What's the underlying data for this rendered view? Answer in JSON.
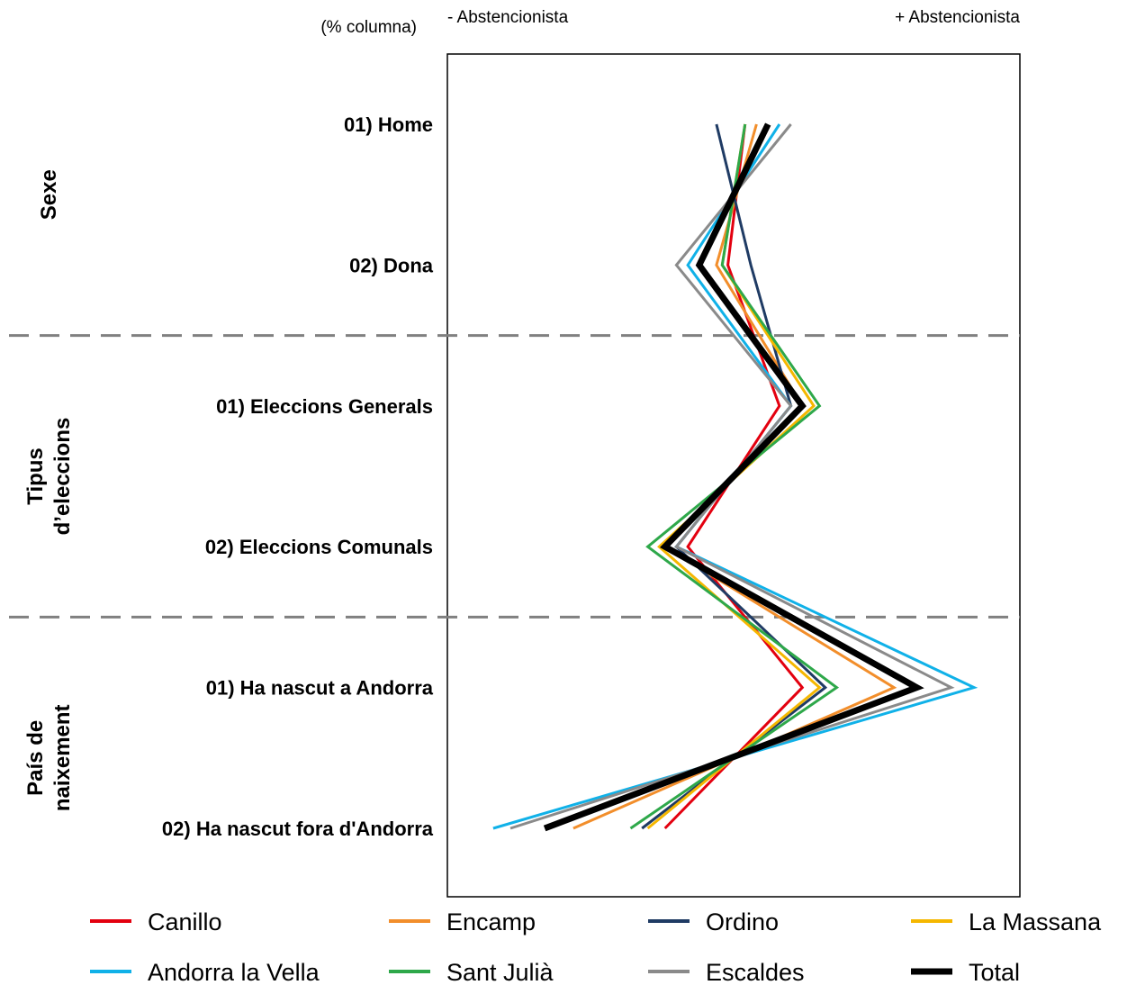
{
  "chart_data": {
    "type": "line",
    "orientation": "horizontal-profile",
    "column_note": "(% columna)",
    "x_axis_left_label": "- Abstencionista",
    "x_axis_right_label": "+ Abstencionista",
    "groups": [
      {
        "label": "Sexe",
        "lines": [
          "Sexe"
        ],
        "categories": [
          "01) Home",
          "02) Dona"
        ]
      },
      {
        "label": "Tipus d'eleccions",
        "lines": [
          "Tipus",
          "d’eleccions"
        ],
        "categories": [
          "01) Eleccions Generals",
          "02) Eleccions Comunals"
        ]
      },
      {
        "label": "País de naixement",
        "lines": [
          "País de",
          "naixement"
        ],
        "categories": [
          "01) Ha nascut a Andorra",
          "02) Ha nascut fora d'Andorra"
        ]
      }
    ],
    "categories": [
      "01) Home",
      "02) Dona",
      "01) Eleccions Generals",
      "02) Eleccions Comunals",
      "01) Ha nascut a Andorra",
      "02) Ha nascut fora d'Andorra"
    ],
    "xlim": [
      0,
      100
    ],
    "x_note": "relative position on abstention scale (left = less abstentionist, right = more abstentionist)",
    "series": [
      {
        "name": "Canillo",
        "color": "#E3000F",
        "values": [
          52,
          49,
          58,
          42,
          62,
          38
        ]
      },
      {
        "name": "Encamp",
        "color": "#F28E2B",
        "values": [
          54,
          47,
          62,
          38,
          78,
          22
        ]
      },
      {
        "name": "Ordino",
        "color": "#1F3B64",
        "values": [
          47,
          53,
          60,
          40,
          66,
          34
        ]
      },
      {
        "name": "La Massana",
        "color": "#F5B700",
        "values": [
          52,
          48,
          64,
          37,
          65,
          35
        ]
      },
      {
        "name": "Andorra la Vella",
        "color": "#10B1E8",
        "values": [
          58,
          42,
          60,
          40,
          92,
          8
        ]
      },
      {
        "name": "Sant Julià",
        "color": "#2EA84A",
        "values": [
          52,
          48,
          65,
          35,
          68,
          32
        ]
      },
      {
        "name": "Escaldes",
        "color": "#8A8A8A",
        "values": [
          60,
          40,
          60,
          40,
          88,
          11
        ]
      },
      {
        "name": "Total",
        "color": "#000000",
        "values": [
          56,
          44,
          62,
          38,
          82,
          17
        ]
      }
    ],
    "legend": {
      "placement": "bottom",
      "columns": 4
    },
    "grid": false,
    "separators": "dashed gray lines between groups"
  }
}
